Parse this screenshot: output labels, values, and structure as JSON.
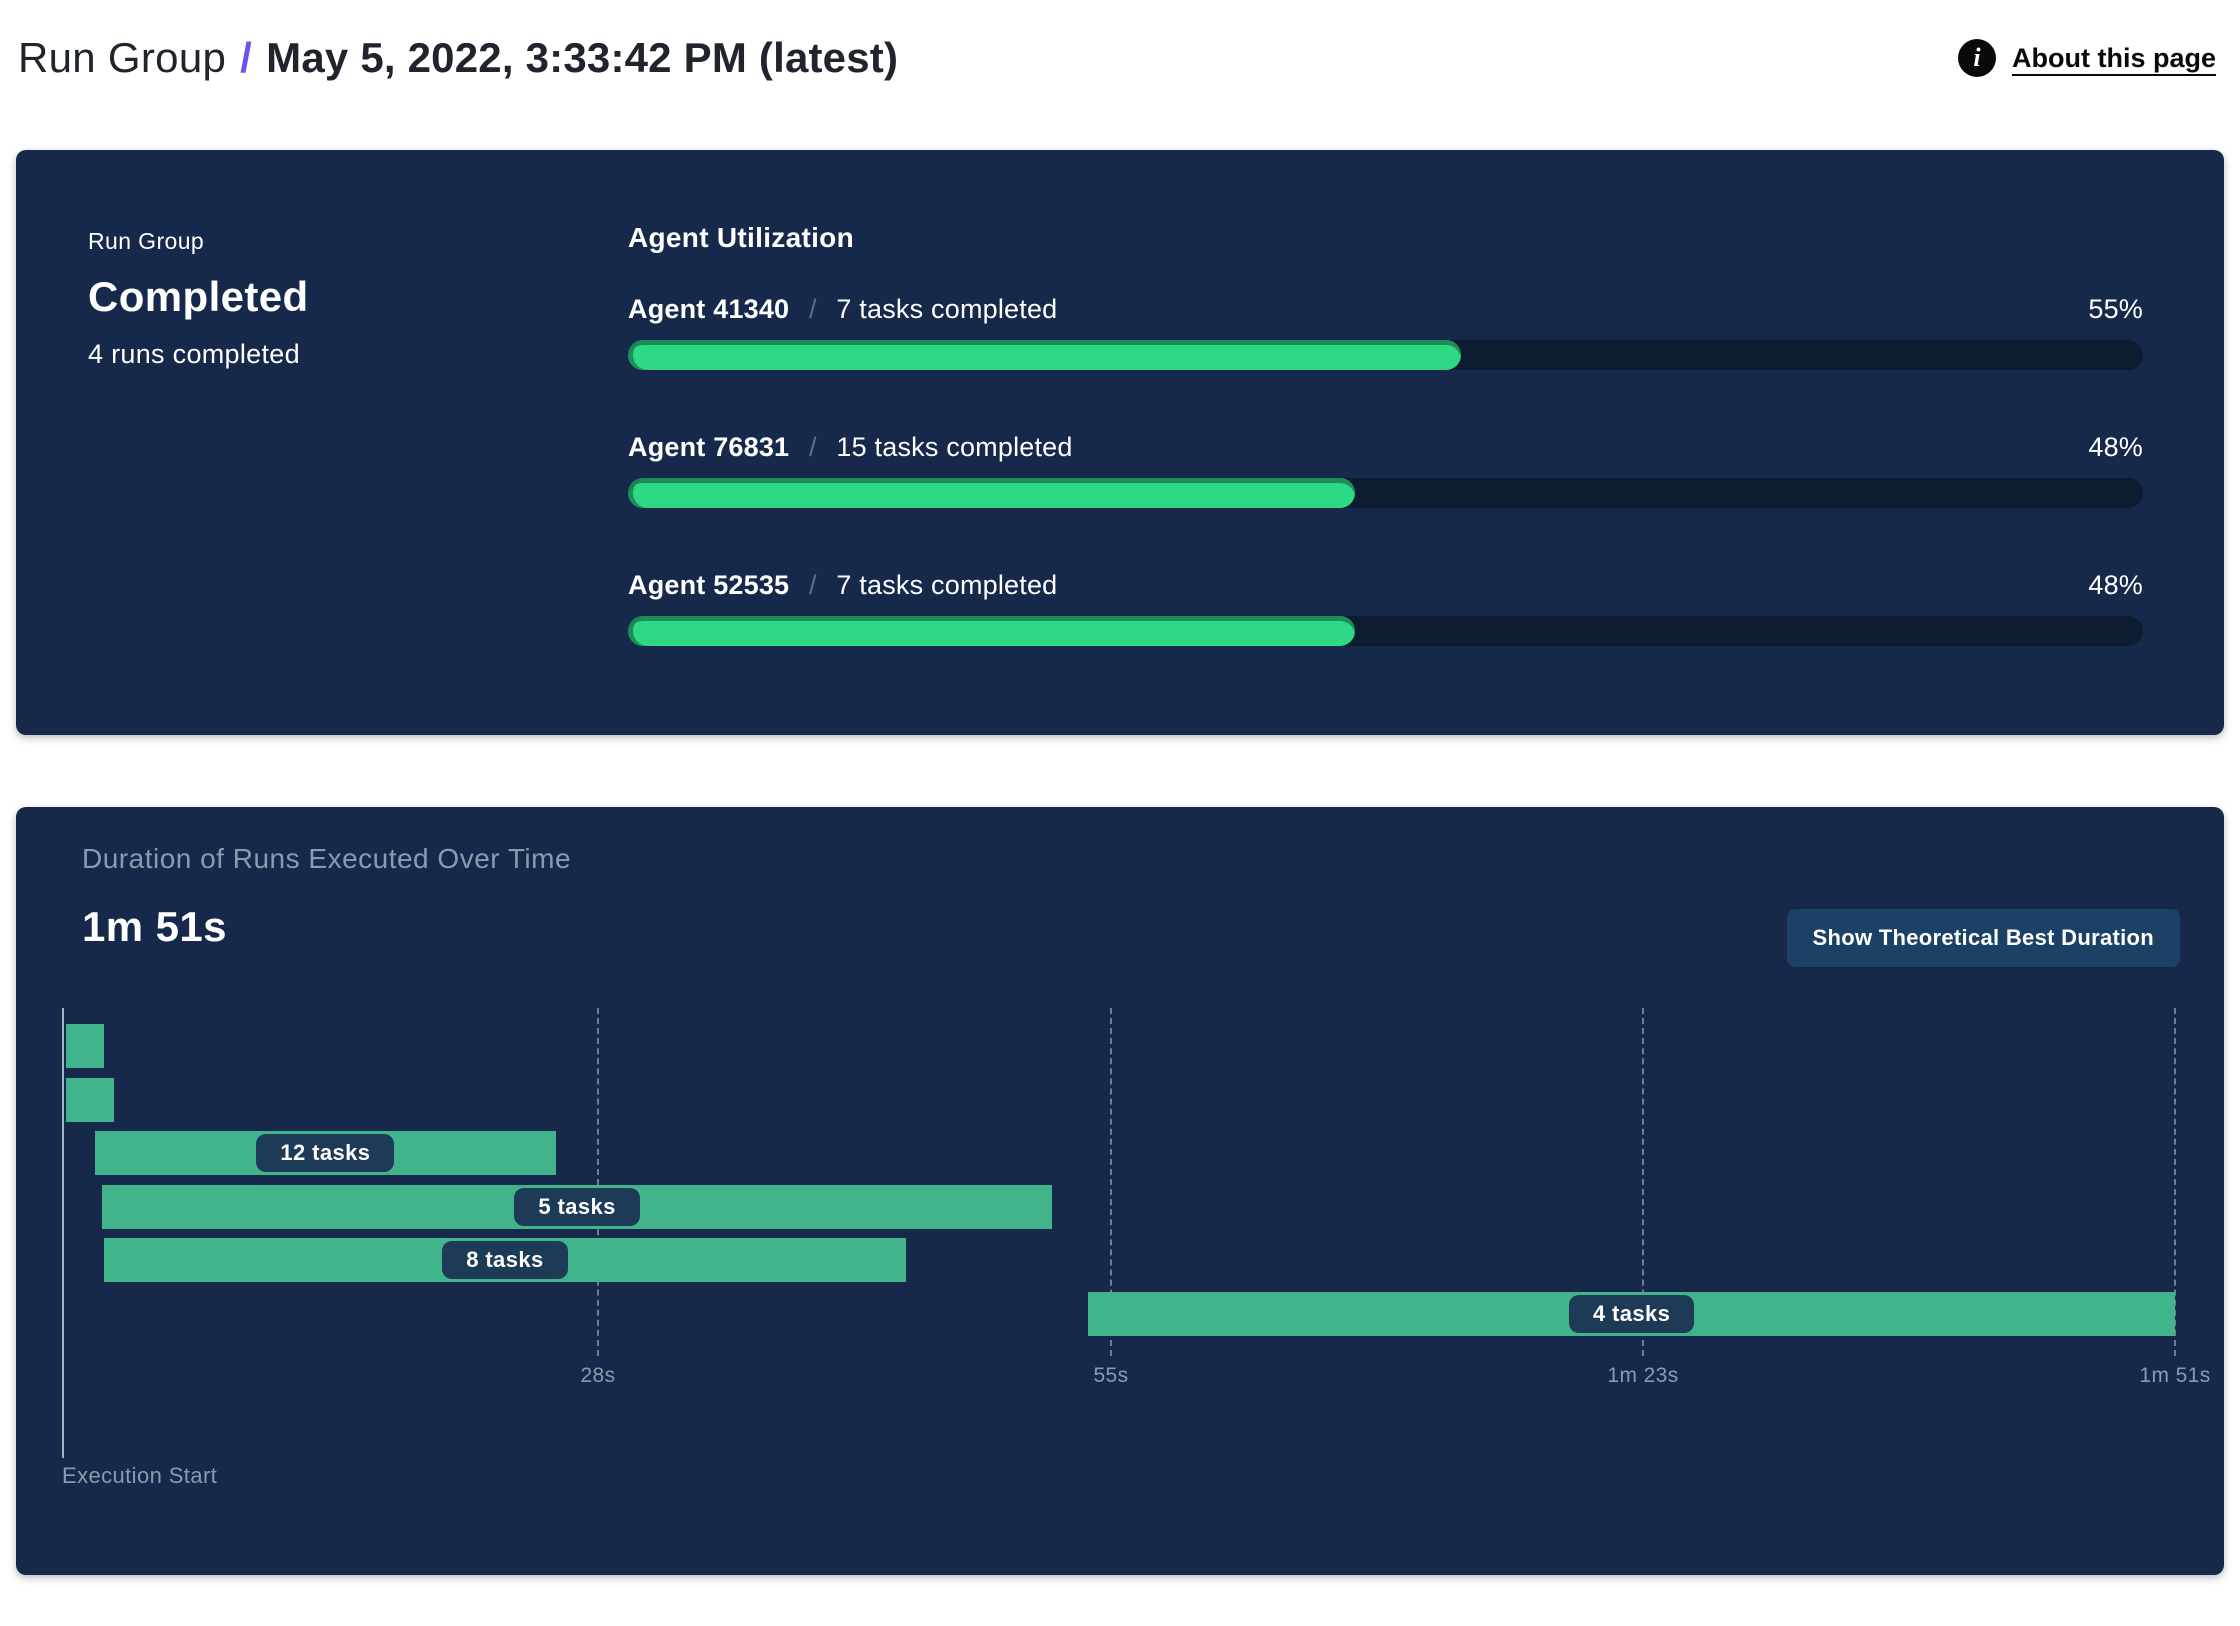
{
  "header": {
    "breadcrumb": "Run Group",
    "separator": "/",
    "title": "May 5, 2022, 3:33:42 PM (latest)",
    "about": {
      "label": "About this page",
      "icon": "info-icon"
    }
  },
  "summary_panel": {
    "eyebrow": "Run Group",
    "status": "Completed",
    "runs_note": "4 runs completed"
  },
  "duration_panel": {
    "subtitle": "Duration of Runs Executed Over Time",
    "total_duration": "1m 51s",
    "button_label": "Show Theoretical Best Duration",
    "execution_start": "Execution Start"
  },
  "chart_data": [
    {
      "type": "bar",
      "title": "Agent Utilization",
      "separator": "/",
      "unit": "%",
      "xlim": [
        0,
        100
      ],
      "bars": [
        {
          "agent": "Agent 41340",
          "tasks_label": "7 tasks completed",
          "percent": 55,
          "percent_label": "55%"
        },
        {
          "agent": "Agent 76831",
          "tasks_label": "15 tasks completed",
          "percent": 48,
          "percent_label": "48%"
        },
        {
          "agent": "Agent 52535",
          "tasks_label": "7 tasks completed",
          "percent": 48,
          "percent_label": "48%"
        }
      ]
    },
    {
      "type": "gantt",
      "title": "Duration of Runs Executed Over Time",
      "total_duration_label": "1m 51s",
      "time_unit": "seconds",
      "axis": {
        "min": 0,
        "max": 111,
        "origin_label": "Execution Start",
        "gridlines": "dashed",
        "ticks": [
          {
            "label": "28s",
            "seconds": 28
          },
          {
            "label": "55s",
            "seconds": 55
          },
          {
            "label": "1m 23s",
            "seconds": 83
          },
          {
            "label": "1m 51s",
            "seconds": 111
          }
        ]
      },
      "runs": [
        {
          "label": "",
          "start_s": 0,
          "end_s": 2
        },
        {
          "label": "",
          "start_s": 0,
          "end_s": 2.5
        },
        {
          "label": "12 tasks",
          "start_s": 1.5,
          "end_s": 25.8
        },
        {
          "label": "5 tasks",
          "start_s": 1.9,
          "end_s": 51.9
        },
        {
          "label": "8 tasks",
          "start_s": 2,
          "end_s": 44.2
        },
        {
          "label": "4 tasks",
          "start_s": 53.8,
          "end_s": 111
        }
      ]
    }
  ],
  "colors": {
    "panel_navy": "#16294a",
    "progress_track": "#0d1c31",
    "progress_green": "#2ed985",
    "progress_green_edge": "#1a8052",
    "gantt_green": "#41b48b",
    "label_pill_navy": "#1d3a57",
    "muted_text": "#8d9aae",
    "button_navy": "#1c4166",
    "accent_purple": "#6a52f0"
  }
}
